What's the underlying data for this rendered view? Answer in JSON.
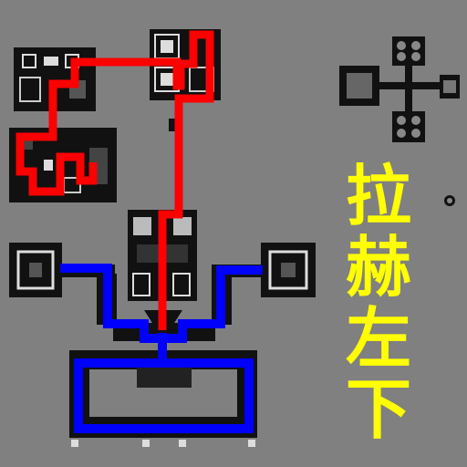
{
  "colors": {
    "background": "#808080",
    "room": "#111111",
    "wall": "#d8d8d8",
    "detail": "#8a8a8a",
    "path_red": "#ff0000",
    "path_blue": "#0000ff",
    "caption": "#ffff00"
  },
  "caption": {
    "chars": [
      "拉",
      "赫",
      "左",
      "下"
    ]
  },
  "map": {
    "icons": [
      "cross-structure-icon",
      "dot-marker-icon"
    ],
    "routes": [
      {
        "color": "path_red",
        "name": "red-route"
      },
      {
        "color": "path_blue",
        "name": "blue-route"
      }
    ]
  }
}
